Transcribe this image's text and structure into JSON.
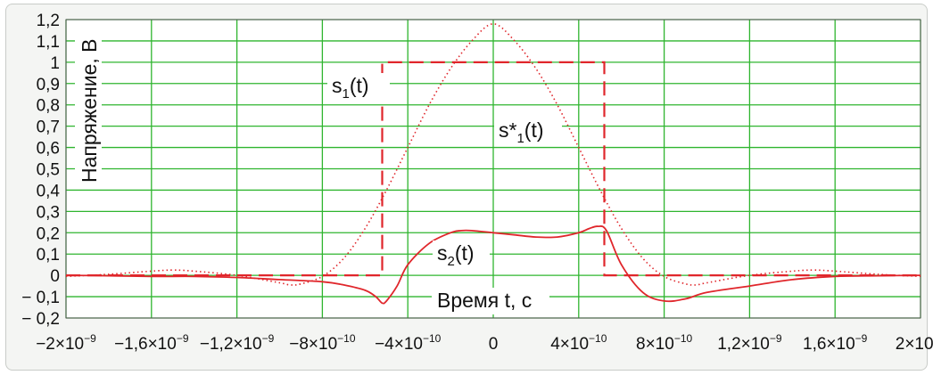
{
  "chart_data": {
    "type": "line",
    "xlabel": "Время t, с",
    "ylabel": "Напряжение, В",
    "xlim": [
      -2e-09,
      2e-09
    ],
    "ylim": [
      -0.2,
      1.2
    ],
    "grid": true,
    "x_ticks": [
      {
        "value": -2e-09,
        "mant": "−2×10",
        "exp": "−9"
      },
      {
        "value": -1.6e-09,
        "mant": "−1,6×10",
        "exp": "−9"
      },
      {
        "value": -1.2e-09,
        "mant": "−1,2×10",
        "exp": "−9"
      },
      {
        "value": -8e-10,
        "mant": "−8×10",
        "exp": "−10"
      },
      {
        "value": -4e-10,
        "mant": "−4×10",
        "exp": "−10"
      },
      {
        "value": 0,
        "mant": "0",
        "exp": ""
      },
      {
        "value": 4e-10,
        "mant": "4×10",
        "exp": "−10"
      },
      {
        "value": 8e-10,
        "mant": "8×10",
        "exp": "−10"
      },
      {
        "value": 1.2e-09,
        "mant": "1,2×10",
        "exp": "−9"
      },
      {
        "value": 1.6e-09,
        "mant": "1,6×10",
        "exp": "−9"
      },
      {
        "value": 2e-09,
        "mant": "2×10",
        "exp": "−9"
      }
    ],
    "y_ticks": [
      {
        "value": 1.2,
        "label": "1,2"
      },
      {
        "value": 1.1,
        "label": "1,1"
      },
      {
        "value": 1.0,
        "label": "1"
      },
      {
        "value": 0.9,
        "label": "0,9"
      },
      {
        "value": 0.8,
        "label": "0,8"
      },
      {
        "value": 0.7,
        "label": "0,7"
      },
      {
        "value": 0.6,
        "label": "0,6"
      },
      {
        "value": 0.5,
        "label": "0,5"
      },
      {
        "value": 0.4,
        "label": "0,4"
      },
      {
        "value": 0.3,
        "label": "0,3"
      },
      {
        "value": 0.2,
        "label": "0,2"
      },
      {
        "value": 0.1,
        "label": "0,1"
      },
      {
        "value": 0,
        "label": "0"
      },
      {
        "value": -0.1,
        "label": "− 0,1"
      },
      {
        "value": -0.2,
        "label": "− 0,2"
      }
    ],
    "colors": {
      "grid": "#2fb52f",
      "curve": "#e0262b",
      "background": "#ffffff"
    },
    "series": [
      {
        "name": "s1(t)",
        "style": "dashed",
        "x": [
          -2e-09,
          -5.2e-10,
          -5.2e-10,
          5.2e-10,
          5.2e-10,
          2e-09
        ],
        "y": [
          0,
          0,
          1,
          1,
          0,
          0
        ]
      },
      {
        "name": "s*1(t)",
        "style": "dotted",
        "x": [
          -2e-09,
          -1.8e-09,
          -1.6e-09,
          -1.5e-09,
          -1.4e-09,
          -1.2e-09,
          -1e-09,
          -9.5e-10,
          -9e-10,
          -8e-10,
          -7e-10,
          -6e-10,
          -5e-10,
          -4e-10,
          -3e-10,
          -2e-10,
          -1e-10,
          0,
          1e-10,
          2e-10,
          3e-10,
          4e-10,
          5e-10,
          6e-10,
          7e-10,
          8e-10,
          9e-10,
          9.5e-10,
          1e-09,
          1.2e-09,
          1.4e-09,
          1.5e-09,
          1.6e-09,
          1.8e-09,
          2e-09
        ],
        "y": [
          -0.005,
          0.005,
          0.02,
          0.025,
          0.02,
          0.0,
          -0.035,
          -0.045,
          -0.04,
          -0.005,
          0.08,
          0.22,
          0.4,
          0.6,
          0.8,
          0.97,
          1.1,
          1.18,
          1.1,
          0.97,
          0.8,
          0.6,
          0.4,
          0.22,
          0.08,
          -0.005,
          -0.04,
          -0.045,
          -0.035,
          0.0,
          0.02,
          0.025,
          0.02,
          0.005,
          -0.005
        ]
      },
      {
        "name": "s2(t)",
        "style": "solid",
        "x": [
          -2e-09,
          -1.8e-09,
          -1.6e-09,
          -1.4e-09,
          -1.2e-09,
          -1e-09,
          -8e-10,
          -7e-10,
          -6e-10,
          -5.5e-10,
          -5.2e-10,
          -5e-10,
          -4.5e-10,
          -4e-10,
          -3e-10,
          -2e-10,
          -1.5e-10,
          -1e-10,
          0,
          1e-10,
          2e-10,
          3e-10,
          4e-10,
          4.5e-10,
          4.9e-10,
          5.3e-10,
          6e-10,
          7e-10,
          8e-10,
          9e-10,
          1e-09,
          1.2e-09,
          1.4e-09,
          1.6e-09,
          1.8e-09,
          2e-09
        ],
        "y": [
          0,
          -0.002,
          -0.005,
          -0.005,
          -0.01,
          -0.02,
          -0.03,
          -0.045,
          -0.07,
          -0.1,
          -0.13,
          -0.12,
          -0.05,
          0.05,
          0.15,
          0.2,
          0.21,
          0.21,
          0.2,
          0.19,
          0.18,
          0.18,
          0.2,
          0.22,
          0.23,
          0.21,
          0.05,
          -0.08,
          -0.12,
          -0.11,
          -0.08,
          -0.05,
          -0.02,
          -0.005,
          -0.002,
          0
        ]
      }
    ],
    "annotations": [
      {
        "target": "s1(t)",
        "main": "s",
        "sub": "1",
        "tail": "(t)"
      },
      {
        "target": "s*1(t)",
        "main": "s*",
        "sub": "1",
        "tail": "(t)"
      },
      {
        "target": "s2(t)",
        "main": "s",
        "sub": "2",
        "tail": "(t)"
      }
    ]
  }
}
